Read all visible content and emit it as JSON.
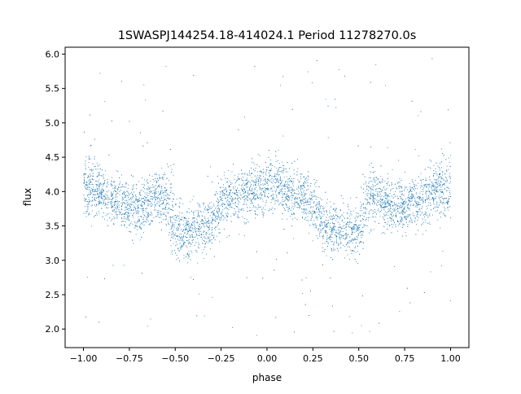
{
  "chart_data": {
    "type": "scatter",
    "title": "1SWASPJ144254.18-414024.1 Period 11278270.0s",
    "xlabel": "phase",
    "ylabel": "flux",
    "xlim": [
      -1.1,
      1.1
    ],
    "ylim": [
      1.73,
      6.1
    ],
    "xticks": [
      -1.0,
      -0.75,
      -0.5,
      -0.25,
      0.0,
      0.25,
      0.5,
      0.75,
      1.0
    ],
    "xtick_labels": [
      "−1.00",
      "−0.75",
      "−0.50",
      "−0.25",
      "0.00",
      "0.25",
      "0.50",
      "0.75",
      "1.00"
    ],
    "yticks": [
      2.0,
      2.5,
      3.0,
      3.5,
      4.0,
      4.5,
      5.0,
      5.5,
      6.0
    ],
    "ytick_labels": [
      "2.0",
      "2.5",
      "3.0",
      "3.5",
      "4.0",
      "4.5",
      "5.0",
      "5.5",
      "6.0"
    ],
    "grid": false,
    "series": [
      {
        "color": "#1f77b4",
        "marker_size": "tiny",
        "phase_range": [
          -1.0,
          1.0
        ],
        "mirrored_about_zero": true,
        "profile": {
          "phase": [
            0.0,
            0.05,
            0.1,
            0.15,
            0.2,
            0.25,
            0.3,
            0.35,
            0.4,
            0.45,
            0.5,
            0.52,
            0.55,
            0.6,
            0.65,
            0.7,
            0.75,
            0.8,
            0.85,
            0.9,
            0.95,
            1.0
          ],
          "median_flux": [
            4.0,
            4.1,
            4.0,
            3.95,
            3.9,
            3.85,
            3.55,
            3.5,
            3.45,
            3.4,
            3.45,
            3.6,
            3.9,
            3.95,
            3.85,
            3.75,
            3.8,
            3.85,
            3.9,
            4.0,
            4.05,
            4.05
          ],
          "spread": [
            0.35,
            0.3,
            0.3,
            0.3,
            0.3,
            0.3,
            0.3,
            0.3,
            0.3,
            0.3,
            0.35,
            0.5,
            0.35,
            0.3,
            0.3,
            0.3,
            0.3,
            0.3,
            0.3,
            0.3,
            0.35,
            0.4
          ]
        },
        "outlier_range": [
          1.9,
          5.95
        ]
      }
    ]
  }
}
